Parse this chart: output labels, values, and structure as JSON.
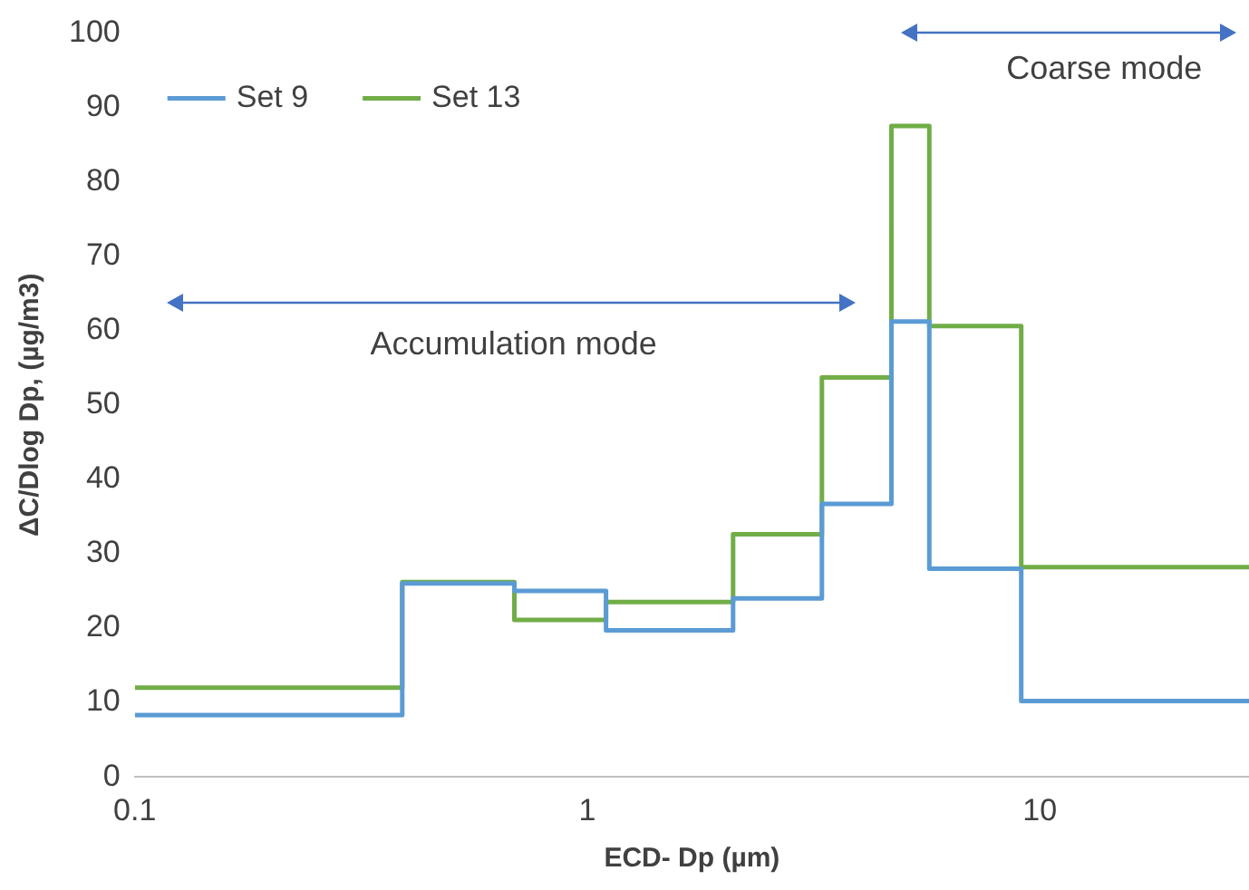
{
  "chart_data": {
    "type": "step",
    "xlabel": "ECD- Dp (µm)",
    "ylabel": "ΔC/Dlog Dp, (µg/m3)",
    "log": "x",
    "xlim": [
      0.1,
      29
    ],
    "xticks": [
      0.1,
      1,
      10
    ],
    "ylim": [
      0,
      100
    ],
    "yticks": [
      0,
      10,
      20,
      30,
      40,
      50,
      60,
      70,
      80,
      90,
      100
    ],
    "grid": false,
    "legend": "top left",
    "line_style": "solid",
    "marker": "none",
    "series": [
      {
        "name": "Set 9",
        "color": "#5b9bd5",
        "x": [
          0.1,
          0.39,
          0.69,
          1.1,
          2.1,
          3.3,
          4.7,
          5.7,
          9.1,
          29
        ],
        "values": [
          8.3,
          26,
          25,
          19.7,
          24,
          36.7,
          61.2,
          28,
          10.2,
          10.2
        ]
      },
      {
        "name": "Set 13",
        "color": "#70ad47",
        "x": [
          0.1,
          0.39,
          0.69,
          1.1,
          2.1,
          3.3,
          4.7,
          5.7,
          9.1,
          29
        ],
        "values": [
          12,
          26.2,
          21.1,
          23.5,
          32.6,
          53.7,
          87.5,
          60.6,
          28.2,
          28.2
        ]
      }
    ],
    "annotations": [
      "Accumulation mode",
      "Coarse mode"
    ]
  }
}
